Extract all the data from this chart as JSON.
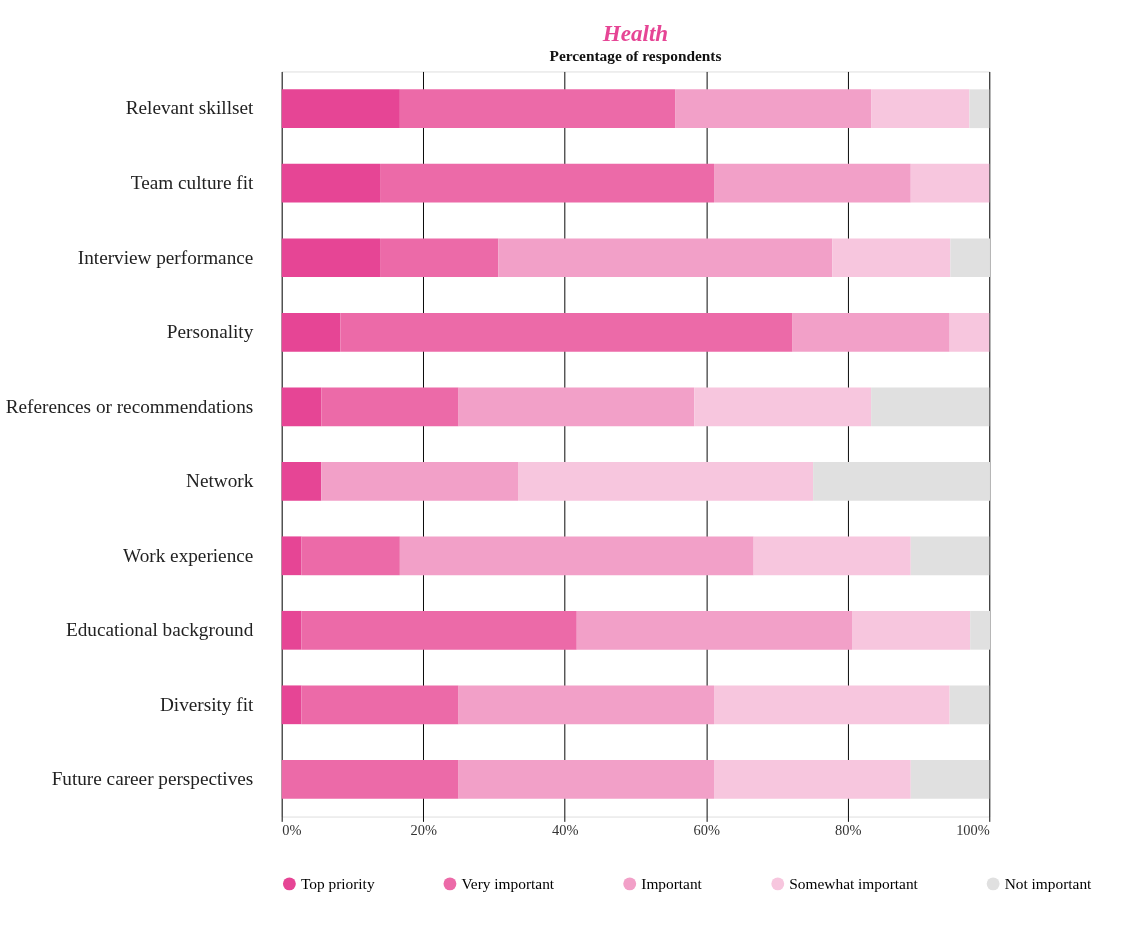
{
  "chart_data": {
    "type": "bar",
    "orientation": "horizontal",
    "stacked": true,
    "title": "Health",
    "subtitle": "Percentage of respondents",
    "categories": [
      "Relevant skillset",
      "Team culture fit",
      "Interview performance",
      "Personality",
      "References or recommendations",
      "Network",
      "Work experience",
      "Educational background",
      "Diversity fit",
      "Future career perspectives"
    ],
    "series": [
      {
        "name": "Top priority",
        "color": "#e64595",
        "values": [
          16.7,
          13.9,
          13.9,
          8.3,
          5.6,
          5.6,
          2.8,
          2.8,
          2.8,
          0
        ]
      },
      {
        "name": "Very important",
        "color": "#ec6aa8",
        "values": [
          38.9,
          47.2,
          16.7,
          63.9,
          19.4,
          0,
          13.9,
          38.9,
          22.2,
          25
        ]
      },
      {
        "name": "Important",
        "color": "#f2a0c8",
        "values": [
          27.7,
          27.8,
          47.2,
          22.2,
          33.3,
          27.8,
          50,
          38.9,
          36.1,
          36.1
        ]
      },
      {
        "name": "Somewhat important",
        "color": "#f7c6de",
        "values": [
          13.9,
          11.1,
          16.7,
          5.6,
          25,
          41.7,
          22.2,
          16.7,
          33.3,
          27.8
        ]
      },
      {
        "name": "Not important",
        "color": "#e0e0e0",
        "values": [
          2.8,
          0,
          5.6,
          0,
          16.7,
          25,
          11.1,
          2.8,
          5.6,
          11.1
        ]
      }
    ],
    "xlim": [
      0,
      100
    ],
    "xticks": [
      {
        "value": 0,
        "label": "0%"
      },
      {
        "value": 20,
        "label": "20%"
      },
      {
        "value": 40,
        "label": "40%"
      },
      {
        "value": 60,
        "label": "60%"
      },
      {
        "value": 80,
        "label": "80%"
      },
      {
        "value": 100,
        "label": "100%"
      }
    ],
    "grid": "x",
    "legend": "bottom"
  }
}
